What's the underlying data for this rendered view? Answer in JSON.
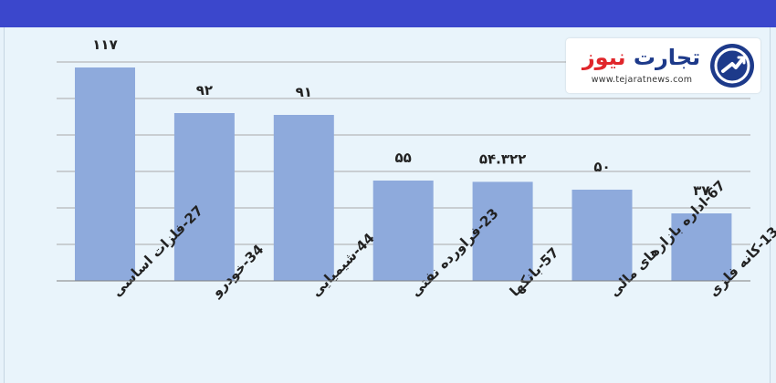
{
  "logo": {
    "name_part1": "تجارت",
    "name_part2": "نیوز",
    "url": "www.tejaratnews.com"
  },
  "colors": {
    "header_band": "#3b47cc",
    "bar": "#8eaadc",
    "background": "#e9f4fb",
    "gridline": "#a9a9a9",
    "label": "#222222"
  },
  "chart_data": {
    "type": "bar",
    "categories": [
      "27-فلزات اساسی",
      "34-خودرو",
      "44-شیمیایی",
      "23-فراورده نفتی",
      "57-بانکها",
      "67-اداره بازارهای مالی",
      "13-کانه فلزی"
    ],
    "values": [
      117,
      92,
      91,
      55,
      54.322,
      50,
      37
    ],
    "value_labels": [
      "۱۱۷",
      "۹۲",
      "۹۱",
      "۵۵",
      "۵۴.۳۲۲",
      "۵۰",
      "۳۷"
    ],
    "ylim": [
      0,
      120
    ],
    "grid": true,
    "legend": "none"
  }
}
